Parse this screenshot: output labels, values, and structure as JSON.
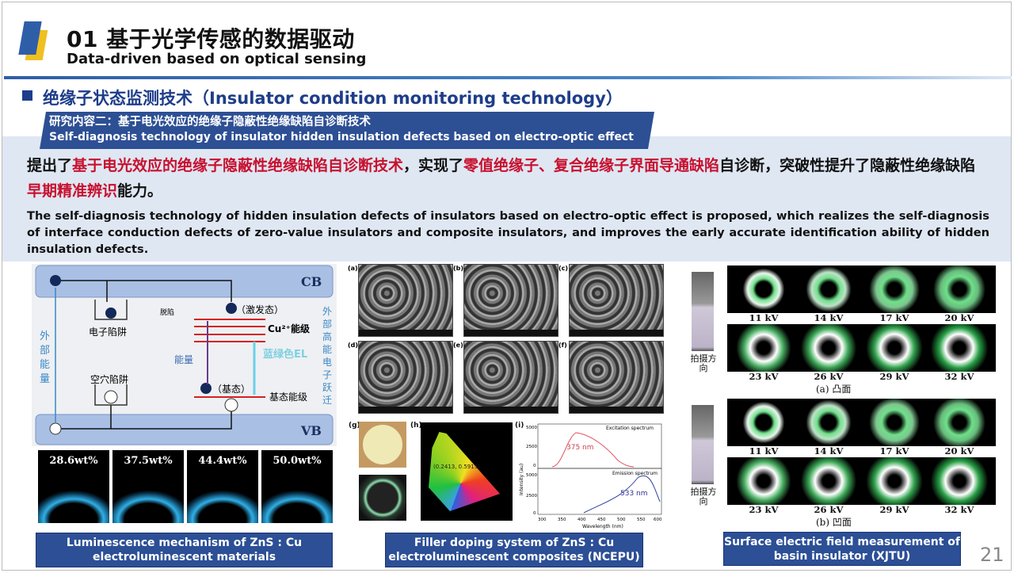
{
  "header": {
    "title": "01 基于光学传感的数据驱动",
    "subtitle": "Data-driven based on optical sensing"
  },
  "section": {
    "title": "绝缘子状态监测技术（Insulator condition monitoring technology）"
  },
  "banner": {
    "line1": "研究内容二：基于电光效应的绝缘子隐蔽性绝缘缺陷自诊断技术",
    "line2": "Self-diagnosis technology of insulator hidden insulation defects based on electro-optic effect"
  },
  "summary_cn": {
    "p1": "提出了",
    "r1": "基于电光效应的绝缘子隐蔽性绝缘缺陷自诊断技术",
    "p2": "，实现了",
    "r2": "零值绝缘子、复合绝缘子界面导通缺陷",
    "p3": "自诊断，突破性提升了隐蔽性绝缘缺陷",
    "r3": "早期精准辨识",
    "p4": "能力。"
  },
  "summary_en": "The self-diagnosis technology of hidden insulation defects of insulators based on electro-optic effect is proposed, which realizes the self-diagnosis of interface conduction defects of zero-value insulators and composite insulators, and improves the early accurate identification ability of hidden insulation defects.",
  "diagram": {
    "cb": "CB",
    "vb": "VB",
    "electron_trap": "电子陷阱",
    "detrap": "脱陷",
    "excited": "（激发态）",
    "cu_level": "Cu²⁺能级",
    "blue_green_el": "蓝绿色EL",
    "energy": "能量",
    "ground": "（基态）",
    "ground_level": "基态能级",
    "hole_trap": "空穴陷阱",
    "external_energy": [
      "外",
      "部",
      "能",
      "量"
    ],
    "external_electron": [
      "外",
      "部",
      "高",
      "能",
      "电",
      "子",
      "跃",
      "迁"
    ]
  },
  "luminescence": [
    "28.6wt%",
    "37.5wt%",
    "44.4wt%",
    "50.0wt%"
  ],
  "captions": {
    "left": "Luminescence mechanism of ZnS : Cu electroluminescent materials",
    "middle": "Filler doping system of ZnS : Cu electroluminescent composites (NCEPU)",
    "right": "Surface electric field measurement of basin insulator (XJTU)"
  },
  "middle": {
    "sem_labels": [
      "(a)",
      "(b)",
      "(c)",
      "(d)",
      "(e)",
      "(f)"
    ],
    "g": "(g)",
    "h": "(h)",
    "i": "(i)",
    "cie_point": "(0.2413, 0.5915)",
    "excitation": "Excitation spectrum",
    "emission": "Emission spectrum",
    "peak1": "375 nm",
    "peak2": "533 nm",
    "ylabel": "Intensity (au)",
    "xlabel": "Wavelength (nm)",
    "xticks": [
      "300",
      "350",
      "400",
      "450",
      "500",
      "550",
      "600"
    ],
    "yticks_top": [
      "5000",
      "2500",
      "0"
    ],
    "yticks_bottom": [
      "5000",
      "2500",
      "0"
    ]
  },
  "right": {
    "voltages": [
      "11 kV",
      "14 kV",
      "17 kV",
      "20 kV",
      "23 kV",
      "26 kV",
      "29 kV",
      "32 kV"
    ],
    "direction": "拍摄方向",
    "convex": "(a) 凸面",
    "concave": "(b) 凹面"
  },
  "page_number": "21",
  "colors": {
    "accent": "#2d4f94",
    "highlight": "#c8102e",
    "band": "#dfe7f3"
  }
}
